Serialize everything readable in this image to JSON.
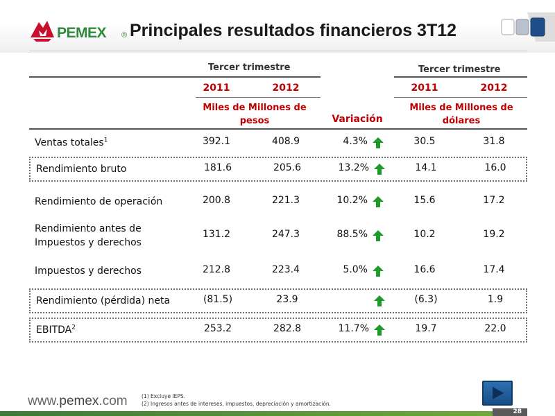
{
  "header": {
    "logo_text": "PEMEX",
    "logo_registered": "®",
    "title": "Principales resultados financieros 3T12"
  },
  "table": {
    "group_pesos": "Tercer trimestre",
    "group_dolares": "Tercer trimestre",
    "year_1": "2011",
    "year_2": "2012",
    "year_3": "2011",
    "year_4": "2012",
    "unit_pesos": "Miles de Millones de pesos",
    "unit_dolares": "Miles de Millones de dólares",
    "variation_header": "Variación",
    "rows": [
      {
        "label": "Ventas totales",
        "sup": "1",
        "p2011": "392.1",
        "p2012": "408.9",
        "var": "4.3%",
        "d2011": "30.5",
        "d2012": "31.8",
        "arrow": "up"
      },
      {
        "label": "Rendimiento bruto",
        "sup": "",
        "p2011": "181.6",
        "p2012": "205.6",
        "var": "13.2%",
        "d2011": "14.1",
        "d2012": "16.0",
        "arrow": "up"
      },
      {
        "label": "Rendimiento de operación",
        "sup": "",
        "p2011": "200.8",
        "p2012": "221.3",
        "var": "10.2%",
        "d2011": "15.6",
        "d2012": "17.2",
        "arrow": "up"
      },
      {
        "label": "Rendimiento antes de Impuestos y derechos",
        "sup": "",
        "p2011": "131.2",
        "p2012": "247.3",
        "var": "88.5%",
        "d2011": "10.2",
        "d2012": "19.2",
        "arrow": "up"
      },
      {
        "label": "Impuestos y derechos",
        "sup": "",
        "p2011": "212.8",
        "p2012": "223.4",
        "var": "5.0%",
        "d2011": "16.6",
        "d2012": "17.4",
        "arrow": "up"
      },
      {
        "label": "Rendimiento (pérdida) neta",
        "sup": "",
        "p2011": "(81.5)",
        "p2012": "23.9",
        "var": "",
        "d2011": "(6.3)",
        "d2012": "1.9",
        "arrow": "up"
      },
      {
        "label": "EBITDA",
        "sup": "2",
        "p2011": "253.2",
        "p2012": "282.8",
        "var": "11.7%",
        "d2011": "19.7",
        "d2012": "22.0",
        "arrow": "up"
      }
    ]
  },
  "footer": {
    "url_prefix": "www.",
    "url_brand": "pemex",
    "url_suffix": ".com",
    "note_1": "(1) Excluye IEPS.",
    "note_2": "(2) Ingresos antes de intereses, impuestos, depreciación y amortización.",
    "page_number": "28"
  },
  "colors": {
    "accent_red": "#c00000",
    "arrow_green": "#1e9a2a",
    "brand_green": "#2e8a3a"
  }
}
